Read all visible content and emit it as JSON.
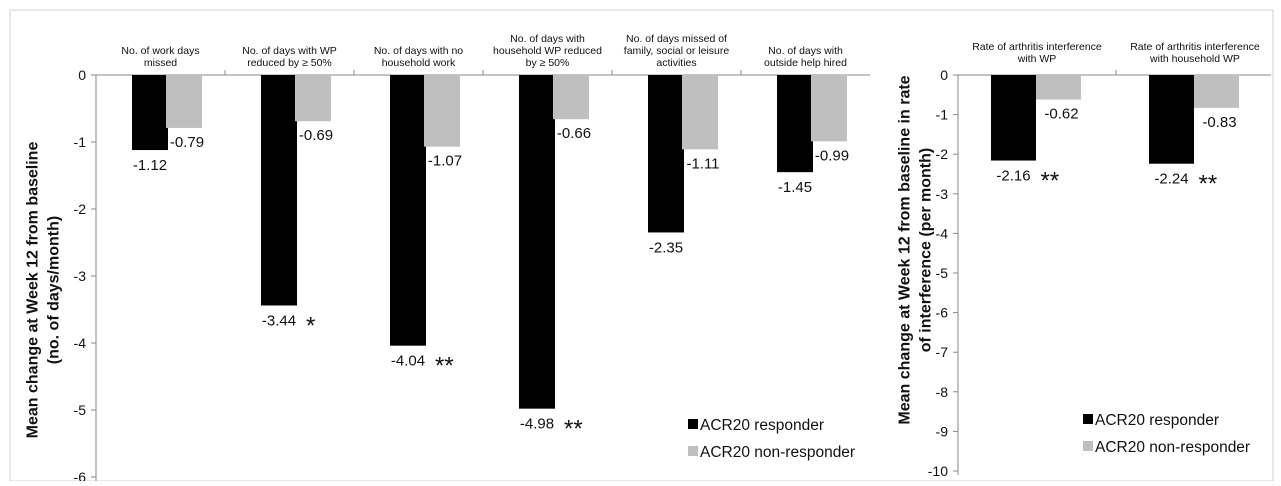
{
  "chart_data": [
    {
      "type": "bar",
      "ylabel_lines": [
        "Mean change at Week 12 from baseline",
        "(no. of days/month)"
      ],
      "ylim": [
        -6,
        0
      ],
      "yticks": [
        "0",
        "-1",
        "-2",
        "-3",
        "-4",
        "-5",
        "-6"
      ],
      "ytick_values": [
        0,
        -1,
        -2,
        -3,
        -4,
        -5,
        -6
      ],
      "categories": [
        [
          "No. of work days",
          "missed"
        ],
        [
          "No. of days with WP",
          "reduced by ≥ 50%"
        ],
        [
          "No. of days with no",
          "household work"
        ],
        [
          "No. of days with",
          "household WP reduced",
          "by ≥ 50%"
        ],
        [
          "No. of days missed of",
          "family, social or leisure",
          "activities"
        ],
        [
          "No. of days with",
          "outside help hired"
        ]
      ],
      "series": [
        {
          "name": "ACR20 responder",
          "color": "#000000",
          "values": [
            -1.12,
            -3.44,
            -4.04,
            -4.98,
            -2.35,
            -1.45
          ],
          "labels": [
            "-1.12",
            "-3.44",
            "-4.04",
            "-4.98",
            "-2.35",
            "-1.45"
          ]
        },
        {
          "name": "ACR20 non-responder",
          "color": "#bfbfbf",
          "values": [
            -0.79,
            -0.69,
            -1.07,
            -0.66,
            -1.11,
            -0.99
          ],
          "labels": [
            "-0.79",
            "-0.69",
            "-1.07",
            "-0.66",
            "-1.11",
            "-0.99"
          ]
        }
      ],
      "significance": [
        "",
        "*",
        "**",
        "**",
        "",
        ""
      ],
      "legend_position": "bottom-right",
      "grid": false
    },
    {
      "type": "bar",
      "ylabel_lines": [
        "Mean change at Week 12 from baseline in rate",
        "of interference (per month)"
      ],
      "ylim": [
        -10,
        0
      ],
      "yticks": [
        "0",
        "-1",
        "-2",
        "-3",
        "-4",
        "-5",
        "-6",
        "-7",
        "-8",
        "-9",
        "-10"
      ],
      "ytick_values": [
        0,
        -1,
        -2,
        -3,
        -4,
        -5,
        -6,
        -7,
        -8,
        -9,
        -10
      ],
      "categories": [
        [
          "Rate of arthritis interference",
          "with WP"
        ],
        [
          "Rate of arthritis interference",
          "with household WP"
        ]
      ],
      "series": [
        {
          "name": "ACR20 responder",
          "color": "#000000",
          "values": [
            -2.16,
            -2.24
          ],
          "labels": [
            "-2.16",
            "-2.24"
          ]
        },
        {
          "name": "ACR20 non-responder",
          "color": "#bfbfbf",
          "values": [
            -0.62,
            -0.83
          ],
          "labels": [
            "-0.62",
            "-0.83"
          ]
        }
      ],
      "significance": [
        "**",
        "**"
      ],
      "legend_position": "bottom-right",
      "grid": false
    }
  ]
}
